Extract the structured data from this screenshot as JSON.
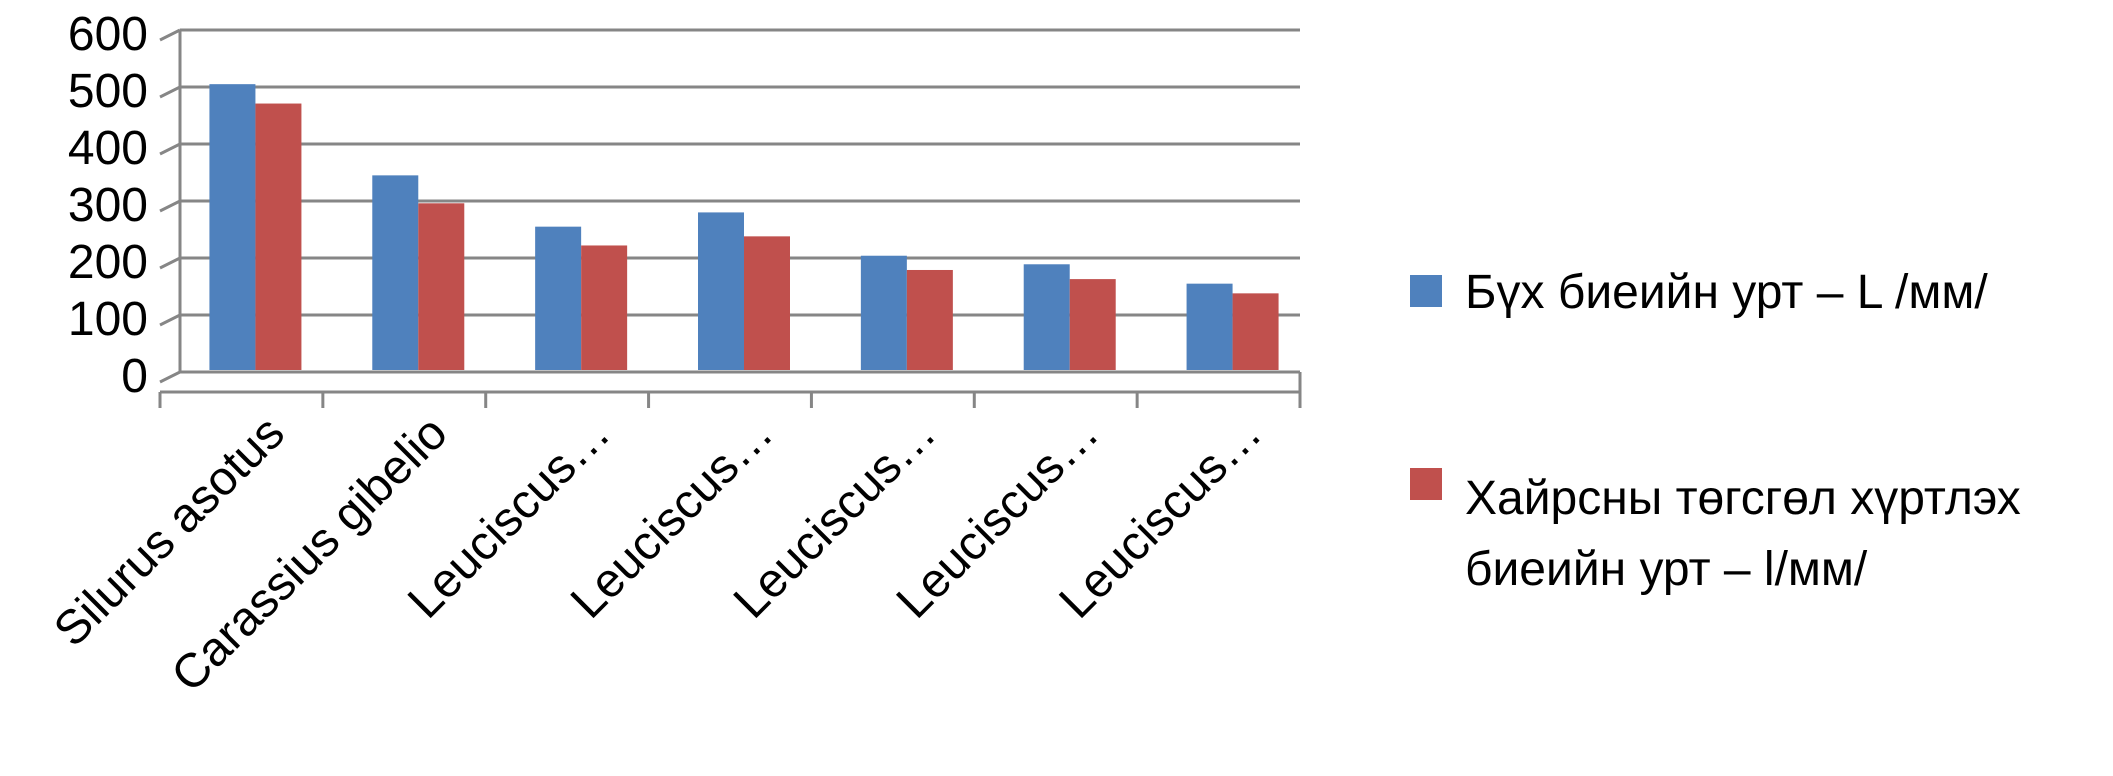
{
  "chart_data": {
    "type": "bar",
    "title": "",
    "xlabel": "",
    "ylabel": "",
    "ylim": [
      0,
      600
    ],
    "yticks": [
      0,
      100,
      200,
      300,
      400,
      500,
      600
    ],
    "grid": true,
    "legend": "right",
    "categories": [
      "Silurus asotus",
      "Carassius gibelio",
      "Leuciscus…",
      "Leuciscus…",
      "Leuciscus…",
      "Leuciscus…",
      "Leuciscus…"
    ],
    "series": [
      {
        "name": "Бүх биеийн урт – L /мм/",
        "color": "#4f81bd",
        "values": [
          512,
          352,
          262,
          287,
          211,
          196,
          162
        ]
      },
      {
        "name": "Хайрсны төгсгөл хүртлэх биеийн урт – l/мм/",
        "color": "#c0504d",
        "values": [
          478,
          303,
          229,
          245,
          186,
          170,
          145
        ]
      }
    ]
  }
}
